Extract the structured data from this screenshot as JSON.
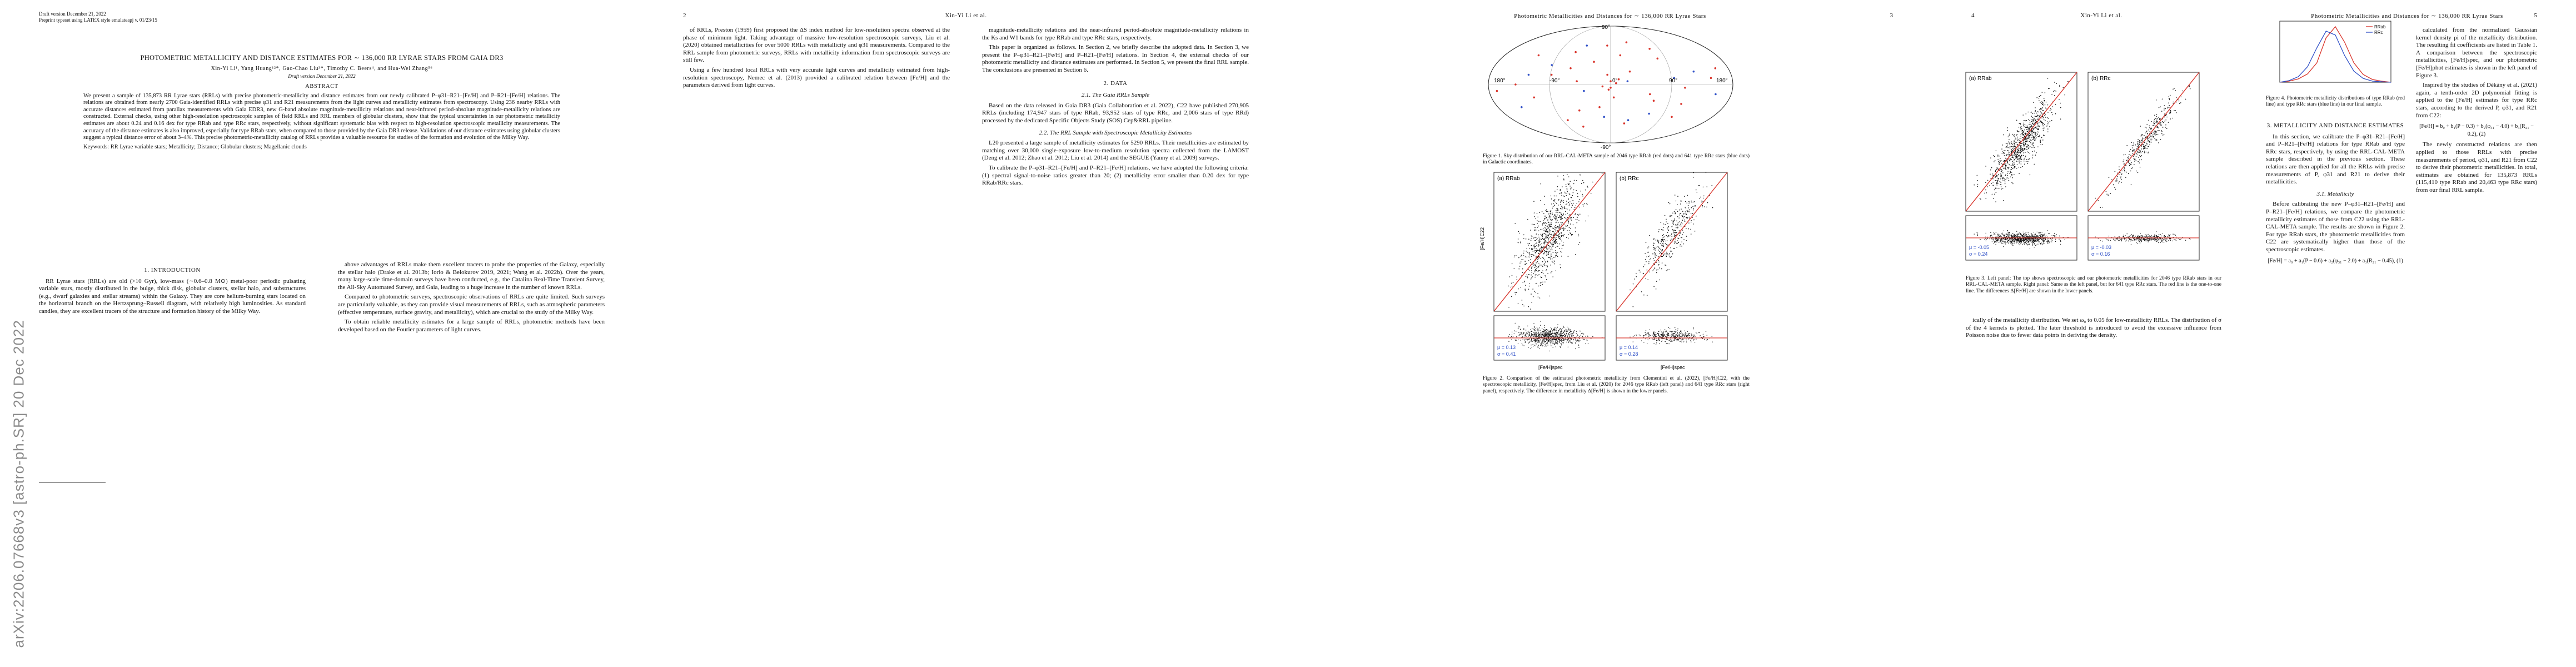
{
  "arxiv_stamp": "arXiv:2206.07668v3  [astro-ph.SR]  20 Dec 2022",
  "page1": {
    "draft_line1": "Draft version December 21, 2022",
    "draft_line2": "Preprint typeset using LATEX style emulateapj v. 01/23/15",
    "title": "PHOTOMETRIC METALLICITY AND DISTANCE ESTIMATES FOR ∼ 136,000 RR LYRAE STARS FROM GAIA DR3",
    "authors": "Xin-Yi Li¹, Yang Huang¹²*, Gao-Chao Liu³*, Timothy C. Beers⁴, and Hua-Wei Zhang⁵⁶",
    "draft_version": "Draft version December 21, 2022",
    "abstract_heading": "ABSTRACT",
    "abstract": "We present a sample of 135,873 RR Lyrae stars (RRLs) with precise photometric-metallicity and distance estimates from our newly calibrated P–φ31–R21–[Fe/H] and P–R21–[Fe/H] relations. The relations are obtained from nearly 2700 Gaia-identified RRLs with precise φ31 and R21 measurements from the light curves and metallicity estimates from spectroscopy. Using 236 nearby RRLs with accurate distances estimated from parallax measurements with Gaia EDR3, new G-band absolute magnitude-metallicity relations and near-infrared period-absolute magnitude-metallicity relations are constructed. External checks, using other high-resolution spectroscopic samples of field RRLs and RRL members of globular clusters, show that the typical uncertainties in our photometric metallicity estimates are about 0.24 and 0.16 dex for type RRab and type RRc stars, respectively, without significant systematic bias with respect to high-resolution spectroscopic metallicity measurements. The accuracy of the distance estimates is also improved, especially for type RRab stars, when compared to those provided by the Gaia DR3 release. Validations of our distance estimates using globular clusters suggest a typical distance error of about 3–4%. This precise photometric-metallicity catalog of RRLs provides a valuable resource for studies of the formation and evolution of the Milky Way.",
    "keywords": "Keywords: RR Lyrae variable stars; Metallicity; Distance; Globular clusters; Magellanic clouds",
    "sec1": "1. INTRODUCTION",
    "intro_left": "RR Lyrae stars (RRLs) are old (>10 Gyr), low-mass (∼0.6–0.8 M⊙) metal-poor periodic pulsating variable stars, mostly distributed in the bulge, thick disk, globular clusters, stellar halo, and substructures (e.g., dwarf galaxies and stellar streams) within the Galaxy. They are core helium-burning stars located on the horizontal branch on the Hertzsprung–Russell diagram, with relatively high luminosities. As standard candles, they are excellent tracers of the structure and formation history of the Milky Way.",
    "intro_right": "above advantages of RRLs make them excellent tracers to probe the properties of the Galaxy, especially the stellar halo (Drake et al. 2013b; Iorio & Belokurov 2019, 2021; Wang et al. 2022b). Over the years, many large-scale time-domain surveys have been conducted, e.g., the Catalina Real-Time Transient Survey, the All-Sky Automated Survey, and Gaia, leading to a huge increase in the number of known RRLs.",
    "intro_right2": "Compared to photometric surveys, spectroscopic observations of RRLs are quite limited. Such surveys are particularly valuable, as they can provide visual measurements of RRLs, such as atmospheric parameters (effective temperature, surface gravity, and metallicity), which are crucial to the study of the Milky Way.",
    "intro_right3": "To obtain reliable metallicity estimates for a large sample of RRLs, photometric methods have been developed based on the Fourier parameters of light curves."
  },
  "page2": {
    "pnum": "2",
    "header": "Xin-Yi Li et al.",
    "left_text": "of RRLs, Preston (1959) first proposed the ΔS index method for low-resolution spectra observed at the phase of minimum light. Taking advantage of massive low-resolution spectroscopic surveys, Liu et al. (2020) obtained metallicities for over 5000 RRLs with metallicity and φ31 measurements. Compared to the RRL sample from photometric surveys, RRLs with metallicity information from spectroscopic surveys are still few.",
    "left_text2": "Using a few hundred local RRLs with very accurate light curves and metallicity estimated from high-resolution spectroscopy, Nemec et al. (2013) provided a calibrated relation between [Fe/H] and the parameters derived from light curves.",
    "sec2": "2. DATA",
    "sub21": "2.1. The Gaia RRLs Sample",
    "right_text": "magnitude-metallicity relations and the near-infrared period-absolute magnitude-metallicity relations in the Ks and W1 bands for type RRab and type RRc stars, respectively.",
    "right_text2": "This paper is organized as follows. In Section 2, we briefly describe the adopted data. In Section 3, we present the P–φ31–R21–[Fe/H] and P–R21–[Fe/H] relations. In Section 4, the external checks of our photometric metallicity and distance estimates are performed. In Section 5, we present the final RRL sample. The conclusions are presented in Section 6.",
    "right_text3": "Based on the data released in Gaia DR3 (Gaia Collaboration et al. 2022), C22 have published 270,905 RRLs (including 174,947 stars of type RRab, 93,952 stars of type RRc, and 2,006 stars of type RRd) processed by the dedicated Specific Objects Study (SOS) Cep&RRL pipeline.",
    "sub22": "2.2. The RRL Sample with Spectroscopic Metallicity Estimates",
    "right_text4": "L20 presented a large sample of metallicity estimates for 5290 RRLs. Their metallicities are estimated by matching over 30,000 single-exposure low-to-medium resolution spectra collected from the LAMOST (Deng et al. 2012; Zhao et al. 2012; Liu et al. 2014) and the SEGUE (Yanny et al. 2009) surveys.",
    "right_text5": "To calibrate the P–φ31–R21–[Fe/H] and P–R21–[Fe/H] relations, we have adopted the following criteria: (1) spectral signal-to-noise ratios greater than 20; (2) metallicity error smaller than 0.20 dex for type RRab/RRc stars."
  },
  "page3": {
    "pnum": "3",
    "header": "Photometric Metallicities and Distances for ∼ 136,000 RR Lyrae Stars",
    "fig1_caption": "Figure 1. Sky distribution of our RRL-CAL-META sample of 2046 type RRab (red dots) and 641 type RRc stars (blue dots) in Galactic coordinates.",
    "fig2_caption": "Figure 2. Comparison of the estimated photometric metallicity from Clementini et al. (2022), [Fe/H]C22, with the spectroscopic metallicity, [Fe/H]spec, from Liu et al. (2020) for 2046 type RRab (left panel) and 641 type RRc stars (right panel), respectively. The difference in metallicity Δ[Fe/H] is shown in the lower panels.",
    "fig1_labels": [
      "90°",
      "180°",
      "-90°",
      "0°",
      "90°",
      "-90°",
      "180°"
    ],
    "fig2_panel_a": "(a) RRab",
    "fig2_panel_b": "(b) RRc",
    "fig2_stats_a1": "μ = 0.13",
    "fig2_stats_a2": "σ = 0.41",
    "fig2_stats_b1": "μ = 0.14",
    "fig2_stats_b2": "σ = 0.28",
    "xaxis": "[Fe/H]spec",
    "yaxis": "[Fe/H]C22"
  },
  "page4": {
    "pnum": "4",
    "header": "Xin-Yi Li et al.",
    "fig3_panel_a": "(a) RRab",
    "fig3_panel_b": "(b) RRc",
    "fig3_stats_a1": "μ = -0.05",
    "fig3_stats_a2": "σ = 0.24",
    "fig3_stats_b1": "μ = -0.03",
    "fig3_stats_b2": "σ = 0.16",
    "fig3_caption": "Figure 3. Left panel: The top shows spectroscopic and our photometric metallicities for 2046 type RRab stars in our RRL-CAL-META sample. Right panel: Same as the left panel, but for 641 type RRc stars. The red line is the one-to-one line. The differences Δ[Fe/H] are shown in the lower panels.",
    "header_right": "Photometric Metallicities and Distances for ∼ 136,000 RR Lyrae Stars",
    "pnum_right": "5",
    "fig4_caption": "Figure 4. Photometric metallicity distributions of type RRab (red line) and type RRc stars (blue line) in our final sample.",
    "fig4_legend_a": "RRab",
    "fig4_legend_b": "RRc",
    "sec3": "3. METALLICITY AND DISTANCE ESTIMATES",
    "sec3_text": "In this section, we calibrate the P–φ31–R21–[Fe/H] and P–R21–[Fe/H] relations for type RRab and type RRc stars, respectively, by using the RRL-CAL-META sample described in the previous section. These relations are then applied for all the RRLs with precise measurements of P, φ31 and R21 to derive their metallicities.",
    "sub31": "3.1. Metallicity",
    "sub31_text": "Before calibrating the new P–φ31–R21–[Fe/H] and P–R21–[Fe/H] relations, we compare the photometric metallicity estimates of those from C22 using the RRL-CAL-META sample. The results are shown in Figure 2. For type RRab stars, the photometric metallicities from C22 are systematically higher than those of the spectroscopic estimates.",
    "eq1": "[Fe/H] = a₀ + a₁(P − 0.6) + a₂(φ₃₁ − 2.0) + a₃(R₂₁ − 0.45),   (1)",
    "left_text": "ically of the metallicity distribution. We set ω₀ to 0.05 for low-metallicity RRLs. The distribution of σ of the 4 kernels is plotted. The later threshold is introduced to avoid the excessive influence from Poisson noise due to fewer data points in deriving the density.",
    "right_text": "calculated from the normalized Gaussian kernel density ρi of the metallicity distribution. The resulting fit coefficients are listed in Table 1. A comparison between the spectroscopic metallicities, [Fe/H]spec, and our photometric [Fe/H]phot estimates is shown in the left panel of Figure 3.",
    "right_text2": "Inspired by the studies of Dékány et al. (2021) again, a tenth-order 2D polynomial fitting is applied to the [Fe/H] estimates for type RRc stars, according to the derived P, φ31, and R21 from C22:",
    "eq2": "[Fe/H] = b₀ + b₁(P − 0.3) + b₂(φ₃₁ − 4.0) + b₃(R₂₁ − 0.2),   (2)",
    "right_text3": "The newly constructed relations are then applied to those RRLs with precise measurements of period, φ31, and R21 from C22 to derive their photometric metallicities. In total, estimates are obtained for 135,873 RRLs (115,410 type RRab and 20,463 type RRc stars) from our final RRL sample."
  },
  "chart_data": [
    {
      "type": "scatter",
      "title": "Sky distribution (Galactic, Aitoff)",
      "series": [
        {
          "name": "RRab",
          "color": "#d9342b",
          "points": [
            [
              -150,
              10
            ],
            [
              -120,
              -30
            ],
            [
              -90,
              40
            ],
            [
              -60,
              -15
            ],
            [
              -30,
              20
            ],
            [
              0,
              -5
            ],
            [
              30,
              35
            ],
            [
              60,
              -40
            ],
            [
              90,
              15
            ],
            [
              120,
              -20
            ],
            [
              150,
              45
            ],
            [
              -140,
              -50
            ],
            [
              -100,
              55
            ],
            [
              -40,
              -60
            ],
            [
              10,
              60
            ],
            [
              50,
              5
            ],
            [
              110,
              -55
            ],
            [
              170,
              -10
            ],
            [
              -170,
              25
            ],
            [
              -70,
              -25
            ],
            [
              20,
              -35
            ],
            [
              80,
              50
            ],
            [
              140,
              0
            ],
            [
              -20,
              45
            ],
            [
              -110,
              -5
            ],
            [
              65,
              25
            ],
            [
              -55,
              65
            ],
            [
              95,
              -65
            ],
            [
              5,
              15
            ],
            [
              -5,
              -20
            ],
            [
              0,
              5
            ],
            [
              3,
              -8
            ],
            [
              -8,
              2
            ],
            [
              12,
              -3
            ],
            [
              -12,
              8
            ]
          ]
        },
        {
          "name": "RRc",
          "color": "#2e4fc7",
          "points": [
            [
              -130,
              20
            ],
            [
              -80,
              -45
            ],
            [
              -25,
              5
            ],
            [
              40,
              -10
            ],
            [
              100,
              30
            ],
            [
              160,
              -35
            ],
            [
              -160,
              -15
            ],
            [
              70,
              60
            ],
            [
              -45,
              -55
            ],
            [
              125,
              15
            ],
            [
              -95,
              10
            ],
            [
              15,
              -50
            ]
          ]
        }
      ]
    },
    {
      "type": "scatter",
      "title": "(a) RRab",
      "xlabel": "[Fe/H]spec",
      "ylabel": "[Fe/H]C22",
      "xlim": [
        -3,
        0
      ],
      "ylim": [
        -3,
        0
      ],
      "stats": {
        "mu": 0.13,
        "sigma": 0.41
      }
    },
    {
      "type": "scatter",
      "title": "(b) RRc",
      "xlabel": "[Fe/H]spec",
      "ylabel": "[Fe/H]C22",
      "xlim": [
        -3,
        0
      ],
      "ylim": [
        -3,
        0
      ],
      "stats": {
        "mu": 0.14,
        "sigma": 0.28
      }
    },
    {
      "type": "line",
      "title": "Figure 4 metallicity distributions",
      "x": [
        -3.0,
        -2.75,
        -2.5,
        -2.25,
        -2.0,
        -1.75,
        -1.5,
        -1.25,
        -1.0,
        -0.75,
        -0.5,
        -0.25,
        0.0
      ],
      "series": [
        {
          "name": "RRab",
          "color": "#d9342b",
          "values": [
            0.0,
            0.02,
            0.06,
            0.15,
            0.35,
            0.8,
            1.0,
            0.72,
            0.35,
            0.14,
            0.05,
            0.02,
            0.0
          ]
        },
        {
          "name": "RRc",
          "color": "#2e4fc7",
          "values": [
            0.0,
            0.03,
            0.1,
            0.28,
            0.62,
            0.92,
            0.85,
            0.48,
            0.2,
            0.07,
            0.02,
            0.01,
            0.0
          ]
        }
      ],
      "xlim": [
        -3,
        0
      ]
    }
  ]
}
